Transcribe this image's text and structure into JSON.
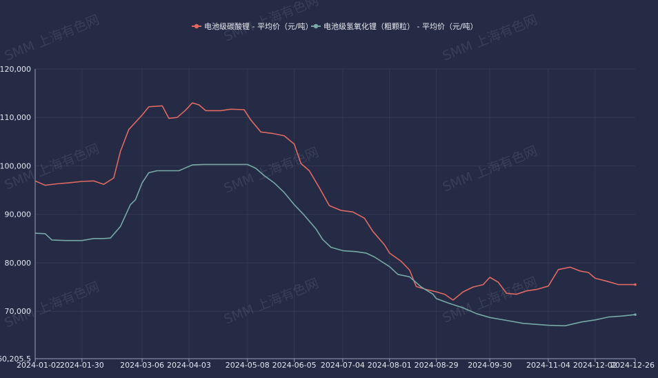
{
  "watermark": "SMM 上海有色网",
  "chart_data": {
    "type": "line",
    "title": "",
    "xlabel": "",
    "ylabel": "",
    "ylim": [
      60205.5,
      120000
    ],
    "y_ticks": [
      "60,205.5",
      "70,000",
      "80,000",
      "90,000",
      "100,000",
      "110,000",
      "120,000"
    ],
    "y_tick_values": [
      60205.5,
      70000,
      80000,
      90000,
      100000,
      110000,
      120000
    ],
    "x_ticks": [
      "2024-01-02",
      "2024-01-30",
      "2024-03-06",
      "2024-04-03",
      "2024-05-08",
      "2024-06-05",
      "2024-07-04",
      "2024-08-01",
      "2024-08-29",
      "2024-09-30",
      "2024-11-04",
      "2024-12-02",
      "2024-12-26"
    ],
    "grid": true,
    "legend_position": "top-center",
    "series": [
      {
        "name": "电池级碳酸锂 - 平均价（元/吨）",
        "color": "#e06a63",
        "points": [
          [
            "2024-01-02",
            96900
          ],
          [
            "2024-01-08",
            96000
          ],
          [
            "2024-01-15",
            96300
          ],
          [
            "2024-01-22",
            96500
          ],
          [
            "2024-01-30",
            96800
          ],
          [
            "2024-02-06",
            96900
          ],
          [
            "2024-02-12",
            96200
          ],
          [
            "2024-02-18",
            97500
          ],
          [
            "2024-02-22",
            103000
          ],
          [
            "2024-02-27",
            107500
          ],
          [
            "2024-03-02",
            109000
          ],
          [
            "2024-03-06",
            110500
          ],
          [
            "2024-03-10",
            112200
          ],
          [
            "2024-03-18",
            112400
          ],
          [
            "2024-03-22",
            109800
          ],
          [
            "2024-03-27",
            110000
          ],
          [
            "2024-04-01",
            111500
          ],
          [
            "2024-04-05",
            113000
          ],
          [
            "2024-04-09",
            112600
          ],
          [
            "2024-04-13",
            111400
          ],
          [
            "2024-04-22",
            111400
          ],
          [
            "2024-04-28",
            111700
          ],
          [
            "2024-05-06",
            111600
          ],
          [
            "2024-05-10",
            109500
          ],
          [
            "2024-05-16",
            107000
          ],
          [
            "2024-05-23",
            106700
          ],
          [
            "2024-05-30",
            106200
          ],
          [
            "2024-06-05",
            104500
          ],
          [
            "2024-06-09",
            100500
          ],
          [
            "2024-06-14",
            99000
          ],
          [
            "2024-06-20",
            95500
          ],
          [
            "2024-06-26",
            91800
          ],
          [
            "2024-07-03",
            90800
          ],
          [
            "2024-07-10",
            90500
          ],
          [
            "2024-07-17",
            89200
          ],
          [
            "2024-07-22",
            86500
          ],
          [
            "2024-07-29",
            83700
          ],
          [
            "2024-08-01",
            82000
          ],
          [
            "2024-08-08",
            80300
          ],
          [
            "2024-08-13",
            78500
          ],
          [
            "2024-08-17",
            75100
          ],
          [
            "2024-08-23",
            74500
          ],
          [
            "2024-08-29",
            74000
          ],
          [
            "2024-09-03",
            73500
          ],
          [
            "2024-09-08",
            72300
          ],
          [
            "2024-09-14",
            74000
          ],
          [
            "2024-09-20",
            75000
          ],
          [
            "2024-09-26",
            75500
          ],
          [
            "2024-09-30",
            77000
          ],
          [
            "2024-10-05",
            76000
          ],
          [
            "2024-10-10",
            73700
          ],
          [
            "2024-10-16",
            73500
          ],
          [
            "2024-10-22",
            74200
          ],
          [
            "2024-10-28",
            74500
          ],
          [
            "2024-11-04",
            75200
          ],
          [
            "2024-11-10",
            78600
          ],
          [
            "2024-11-17",
            79100
          ],
          [
            "2024-11-23",
            78300
          ],
          [
            "2024-11-28",
            78000
          ],
          [
            "2024-12-02",
            76800
          ],
          [
            "2024-12-09",
            76200
          ],
          [
            "2024-12-16",
            75500
          ],
          [
            "2024-12-21",
            75500
          ],
          [
            "2024-12-26",
            75500
          ]
        ]
      },
      {
        "name": "电池级氢氧化锂（粗颗粒） - 平均价（元/吨）",
        "color": "#78a9a6",
        "points": [
          [
            "2024-01-02",
            86100
          ],
          [
            "2024-01-08",
            86000
          ],
          [
            "2024-01-12",
            84700
          ],
          [
            "2024-01-20",
            84600
          ],
          [
            "2024-01-30",
            84600
          ],
          [
            "2024-02-06",
            85000
          ],
          [
            "2024-02-12",
            85000
          ],
          [
            "2024-02-16",
            85100
          ],
          [
            "2024-02-22",
            87500
          ],
          [
            "2024-02-28",
            92000
          ],
          [
            "2024-03-02",
            93000
          ],
          [
            "2024-03-06",
            96500
          ],
          [
            "2024-03-10",
            98600
          ],
          [
            "2024-03-15",
            99000
          ],
          [
            "2024-03-22",
            99000
          ],
          [
            "2024-03-28",
            99000
          ],
          [
            "2024-04-01",
            99600
          ],
          [
            "2024-04-05",
            100200
          ],
          [
            "2024-04-12",
            100300
          ],
          [
            "2024-04-20",
            100300
          ],
          [
            "2024-05-08",
            100300
          ],
          [
            "2024-05-13",
            99500
          ],
          [
            "2024-05-18",
            98000
          ],
          [
            "2024-05-24",
            96500
          ],
          [
            "2024-05-30",
            94500
          ],
          [
            "2024-06-05",
            92000
          ],
          [
            "2024-06-11",
            89800
          ],
          [
            "2024-06-18",
            87000
          ],
          [
            "2024-06-22",
            84800
          ],
          [
            "2024-06-27",
            83200
          ],
          [
            "2024-07-04",
            82500
          ],
          [
            "2024-07-12",
            82300
          ],
          [
            "2024-07-18",
            82000
          ],
          [
            "2024-07-23",
            81200
          ],
          [
            "2024-08-01",
            79200
          ],
          [
            "2024-08-06",
            77600
          ],
          [
            "2024-08-13",
            77100
          ],
          [
            "2024-08-20",
            75000
          ],
          [
            "2024-08-27",
            73500
          ],
          [
            "2024-08-29",
            72600
          ],
          [
            "2024-09-06",
            71600
          ],
          [
            "2024-09-14",
            70700
          ],
          [
            "2024-09-22",
            69500
          ],
          [
            "2024-09-30",
            68700
          ],
          [
            "2024-10-10",
            68100
          ],
          [
            "2024-10-20",
            67500
          ],
          [
            "2024-11-04",
            67100
          ],
          [
            "2024-11-14",
            67000
          ],
          [
            "2024-11-24",
            67800
          ],
          [
            "2024-12-02",
            68200
          ],
          [
            "2024-12-10",
            68800
          ],
          [
            "2024-12-18",
            69000
          ],
          [
            "2024-12-26",
            69300
          ]
        ]
      }
    ]
  }
}
